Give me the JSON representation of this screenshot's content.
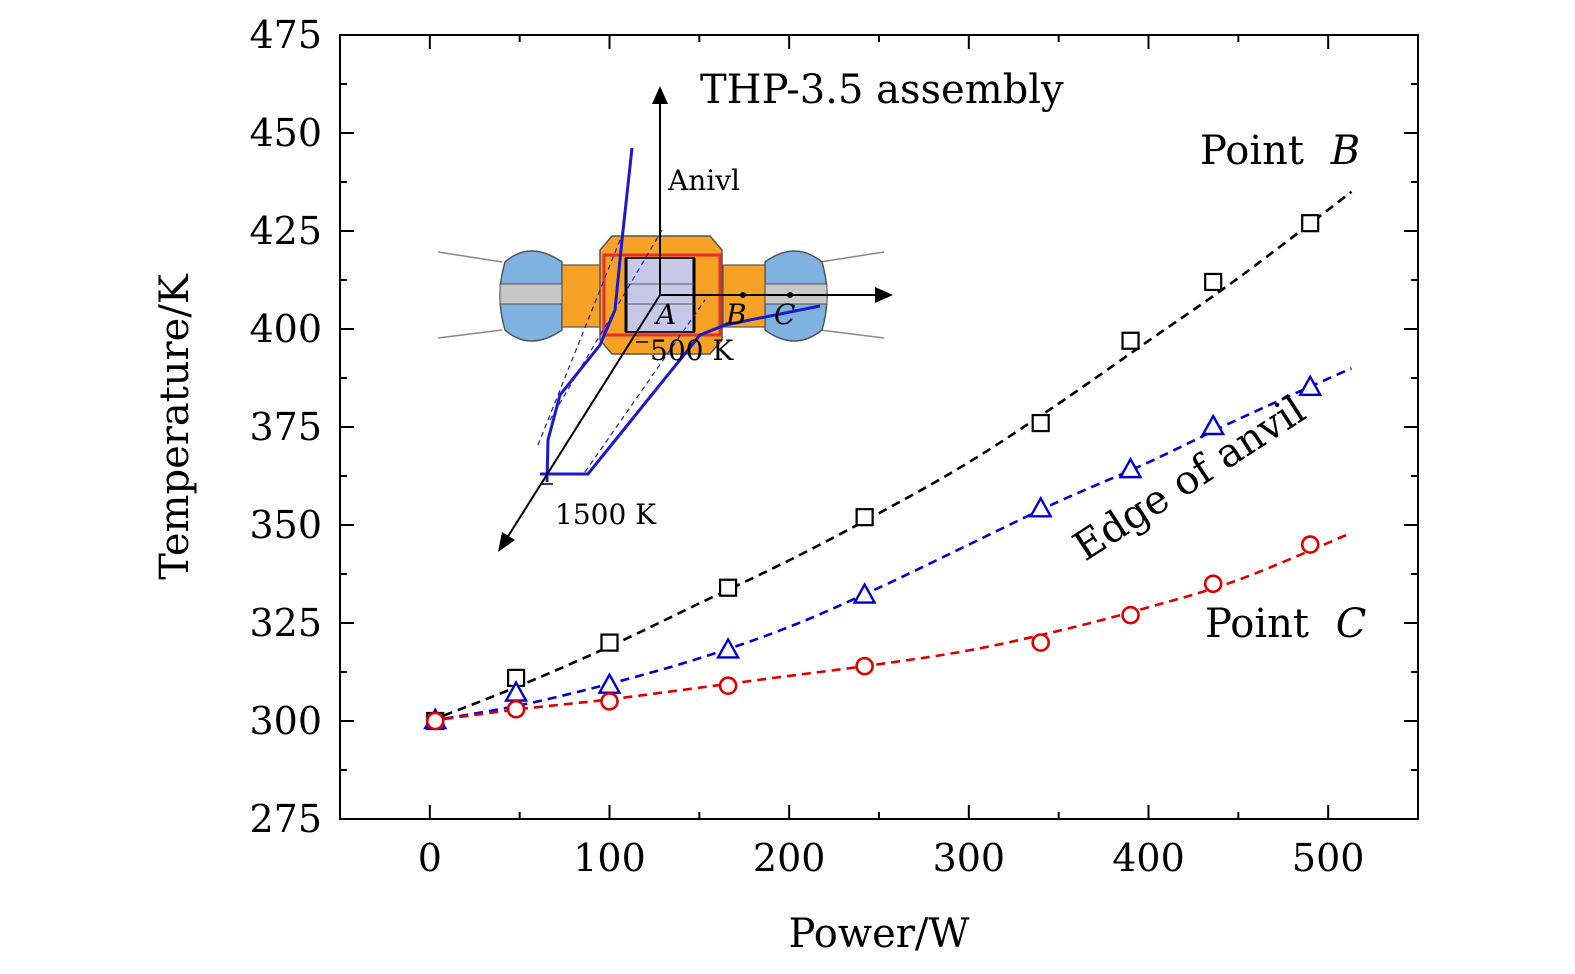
{
  "chart_data": {
    "type": "scatter",
    "xlabel": "Power/W",
    "ylabel": "Temperature/K",
    "xlim": [
      -50,
      550
    ],
    "ylim": [
      275,
      475
    ],
    "xticks": [
      0,
      100,
      200,
      300,
      400,
      500
    ],
    "yticks": [
      275,
      300,
      325,
      350,
      375,
      400,
      425,
      450,
      475
    ],
    "grid": false,
    "series": [
      {
        "name": "Point B",
        "marker": "square",
        "color": "#000000",
        "x": [
          3,
          48,
          100,
          166,
          242,
          340,
          390,
          436,
          490
        ],
        "y": [
          300,
          311,
          320,
          334,
          352,
          376,
          397,
          412,
          427
        ],
        "fit": [
          [
            0,
            300
          ],
          [
            50,
            309
          ],
          [
            100,
            319
          ],
          [
            150,
            330
          ],
          [
            200,
            341
          ],
          [
            250,
            353
          ],
          [
            300,
            366
          ],
          [
            350,
            381
          ],
          [
            400,
            397
          ],
          [
            450,
            413
          ],
          [
            513,
            435
          ]
        ]
      },
      {
        "name": "Edge of anvil",
        "marker": "triangle",
        "color": "#0000cc",
        "x": [
          3,
          48,
          100,
          166,
          242,
          340,
          390,
          436,
          490
        ],
        "y": [
          300,
          307,
          309,
          318,
          332,
          354,
          364,
          375,
          385
        ],
        "fit": [
          [
            0,
            300
          ],
          [
            50,
            304
          ],
          [
            100,
            309.5
          ],
          [
            150,
            316
          ],
          [
            200,
            324
          ],
          [
            250,
            334
          ],
          [
            300,
            345
          ],
          [
            350,
            356
          ],
          [
            400,
            366
          ],
          [
            450,
            377
          ],
          [
            513,
            390
          ]
        ]
      },
      {
        "name": "Point C",
        "marker": "circle",
        "color": "#dd0000",
        "x": [
          3,
          48,
          100,
          166,
          242,
          340,
          390,
          436,
          490
        ],
        "y": [
          300,
          303,
          305,
          309,
          314,
          320,
          327,
          335,
          345
        ],
        "fit": [
          [
            0,
            300
          ],
          [
            50,
            303
          ],
          [
            100,
            305.5
          ],
          [
            150,
            308.5
          ],
          [
            200,
            311.5
          ],
          [
            250,
            314.5
          ],
          [
            300,
            318
          ],
          [
            350,
            323
          ],
          [
            400,
            329
          ],
          [
            450,
            336
          ],
          [
            513,
            348
          ]
        ]
      }
    ],
    "annotations": {
      "point_b_word": "Point",
      "point_b_letter": "B",
      "edge_label": "Edge of anvil",
      "point_c_word": "Point",
      "point_c_letter": "C"
    },
    "inset": {
      "title": "THP-3.5 assembly",
      "axis_label": "Anivl",
      "point_a": "A",
      "point_b": "B",
      "point_c": "C",
      "label_500": "500 K",
      "label_1500": "1500 K",
      "colors": {
        "capsule": "#f7a125",
        "anvil": "#7fb2e0",
        "gray": "#c8c8c8",
        "sample": "#c7c8e8",
        "heater": "#e8302a",
        "profile": "#1a1acc"
      }
    }
  }
}
